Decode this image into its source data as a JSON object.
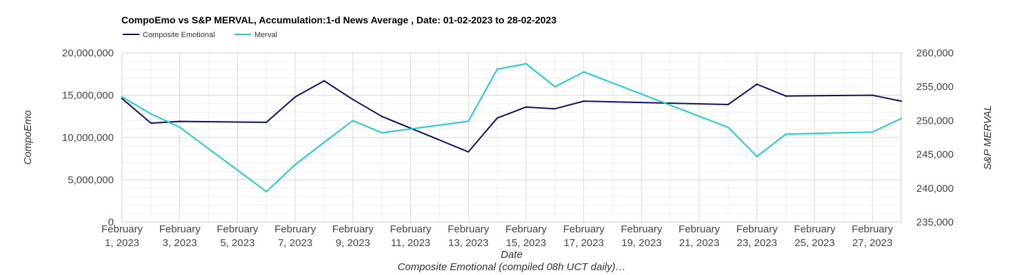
{
  "chart_data": {
    "type": "line",
    "title": "CompoEmo vs S&P MERVAL, Accumulation:1-d News Average , Date: 01-02-2023 to 28-02-2023",
    "xlabel": "Date",
    "ylabel_left": "CompoEmo",
    "ylabel_right": "S&P MERVAL",
    "note": "Composite Emotional (compiled 08h UCT daily)…",
    "legend_position": "top-left",
    "grid": true,
    "x_range": [
      "2023-02-01",
      "2023-02-28"
    ],
    "ylim_left": [
      0,
      20000000
    ],
    "ylim_right": [
      235000,
      260000
    ],
    "x_ticks": [
      {
        "date": "2023-02-01",
        "line1": "February",
        "line2": "1, 2023"
      },
      {
        "date": "2023-02-03",
        "line1": "February",
        "line2": "3, 2023"
      },
      {
        "date": "2023-02-05",
        "line1": "February",
        "line2": "5, 2023"
      },
      {
        "date": "2023-02-07",
        "line1": "February",
        "line2": "7, 2023"
      },
      {
        "date": "2023-02-09",
        "line1": "February",
        "line2": "9, 2023"
      },
      {
        "date": "2023-02-11",
        "line1": "February",
        "line2": "11, 2023"
      },
      {
        "date": "2023-02-13",
        "line1": "February",
        "line2": "13, 2023"
      },
      {
        "date": "2023-02-15",
        "line1": "February",
        "line2": "15, 2023"
      },
      {
        "date": "2023-02-17",
        "line1": "February",
        "line2": "17, 2023"
      },
      {
        "date": "2023-02-19",
        "line1": "February",
        "line2": "19, 2023"
      },
      {
        "date": "2023-02-21",
        "line1": "February",
        "line2": "21, 2023"
      },
      {
        "date": "2023-02-23",
        "line1": "February",
        "line2": "23, 2023"
      },
      {
        "date": "2023-02-25",
        "line1": "February",
        "line2": "25, 2023"
      },
      {
        "date": "2023-02-27",
        "line1": "February",
        "line2": "27, 2023"
      }
    ],
    "y_ticks_left": [
      {
        "value": 0,
        "label": "0"
      },
      {
        "value": 5000000,
        "label": "5,000,000"
      },
      {
        "value": 10000000,
        "label": "10,000,000"
      },
      {
        "value": 15000000,
        "label": "15,000,000"
      },
      {
        "value": 20000000,
        "label": "20,000,000"
      }
    ],
    "y_ticks_right": [
      {
        "value": 235000,
        "label": "235,000"
      },
      {
        "value": 240000,
        "label": "240,000"
      },
      {
        "value": 245000,
        "label": "245,000"
      },
      {
        "value": 250000,
        "label": "250,000"
      },
      {
        "value": 255000,
        "label": "255,000"
      },
      {
        "value": 260000,
        "label": "260,000"
      }
    ],
    "series": [
      {
        "name": "Composite Emotional",
        "axis": "left",
        "color": "#0d0d6b",
        "x": [
          "2023-02-01",
          "2023-02-02",
          "2023-02-03",
          "2023-02-06",
          "2023-02-07",
          "2023-02-08",
          "2023-02-09",
          "2023-02-10",
          "2023-02-13",
          "2023-02-14",
          "2023-02-15",
          "2023-02-16",
          "2023-02-17",
          "2023-02-22",
          "2023-02-23",
          "2023-02-24",
          "2023-02-27",
          "2023-02-28"
        ],
        "y": [
          14600000,
          11700000,
          11900000,
          11800000,
          14800000,
          16700000,
          14500000,
          12500000,
          8300000,
          12300000,
          13600000,
          13400000,
          14300000,
          13900000,
          16300000,
          14900000,
          15000000,
          14300000
        ]
      },
      {
        "name": "Merval",
        "axis": "right",
        "color": "#1ccccc",
        "x": [
          "2023-02-01",
          "2023-02-02",
          "2023-02-03",
          "2023-02-06",
          "2023-02-07",
          "2023-02-08",
          "2023-02-09",
          "2023-02-10",
          "2023-02-13",
          "2023-02-14",
          "2023-02-15",
          "2023-02-16",
          "2023-02-17",
          "2023-02-22",
          "2023-02-23",
          "2023-02-24",
          "2023-02-27",
          "2023-02-28"
        ],
        "y": [
          253500,
          251000,
          249000,
          239500,
          243500,
          246800,
          250000,
          248200,
          249900,
          257600,
          258400,
          255000,
          257200,
          249000,
          244700,
          248000,
          248300,
          250300
        ]
      }
    ]
  }
}
